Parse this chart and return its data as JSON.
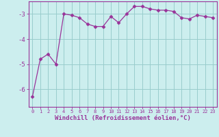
{
  "x": [
    0,
    1,
    2,
    3,
    4,
    5,
    6,
    7,
    8,
    9,
    10,
    11,
    12,
    13,
    14,
    15,
    16,
    17,
    18,
    19,
    20,
    21,
    22,
    23
  ],
  "y": [
    -6.3,
    -4.8,
    -4.6,
    -5.0,
    -3.0,
    -3.05,
    -3.15,
    -3.4,
    -3.5,
    -3.5,
    -3.1,
    -3.35,
    -3.0,
    -2.7,
    -2.7,
    -2.8,
    -2.85,
    -2.85,
    -2.9,
    -3.15,
    -3.2,
    -3.05,
    -3.1,
    -3.15
  ],
  "line_color": "#993399",
  "marker": "D",
  "markersize": 2.5,
  "linewidth": 0.9,
  "background_color": "#cceeee",
  "grid_color": "#99cccc",
  "xlabel": "Windchill (Refroidissement éolien,°C)",
  "xlabel_color": "#993399",
  "tick_color": "#993399",
  "spine_color": "#993399",
  "ylim": [
    -6.7,
    -2.5
  ],
  "yticks": [
    -6,
    -5,
    -4,
    -3
  ],
  "xlim": [
    -0.5,
    23.5
  ],
  "xtick_fontsize": 5.0,
  "ytick_fontsize": 6.5,
  "xlabel_fontsize": 6.5
}
